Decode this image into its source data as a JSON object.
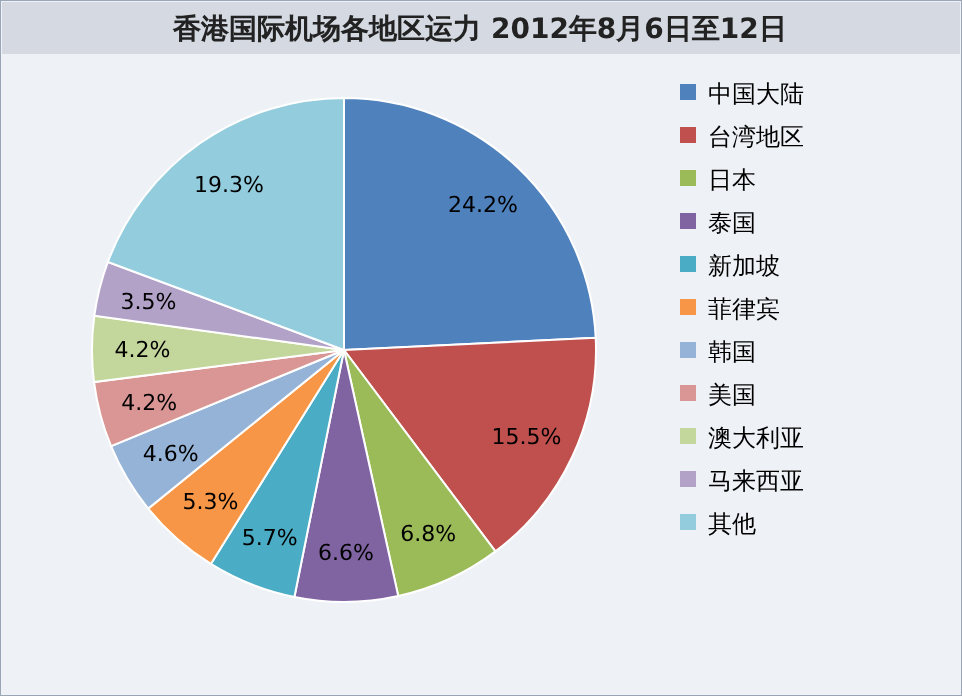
{
  "chart_data": {
    "type": "pie",
    "title": "香港国际机场各地区运力 2012年8月6日至12日",
    "categories": [
      "中国大陆",
      "台湾地区",
      "日本",
      "泰国",
      "新加坡",
      "菲律宾",
      "韩国",
      "美国",
      "澳大利亚",
      "马来西亚",
      "其他"
    ],
    "values": [
      24.2,
      15.5,
      6.8,
      6.6,
      5.7,
      5.3,
      4.6,
      4.2,
      4.2,
      3.5,
      19.3
    ],
    "colors": [
      "#4f81bd",
      "#c0504d",
      "#9bbb59",
      "#8064a2",
      "#4bacc6",
      "#f79646",
      "#95b3d7",
      "#d99694",
      "#c3d69b",
      "#b3a2c7",
      "#93cddd"
    ],
    "value_labels": [
      "24.2%",
      "15.5%",
      "6.8%",
      "6.6%",
      "5.7%",
      "5.3%",
      "4.6%",
      "4.2%",
      "4.2%",
      "3.5%",
      "19.3%"
    ],
    "legend": "right"
  }
}
